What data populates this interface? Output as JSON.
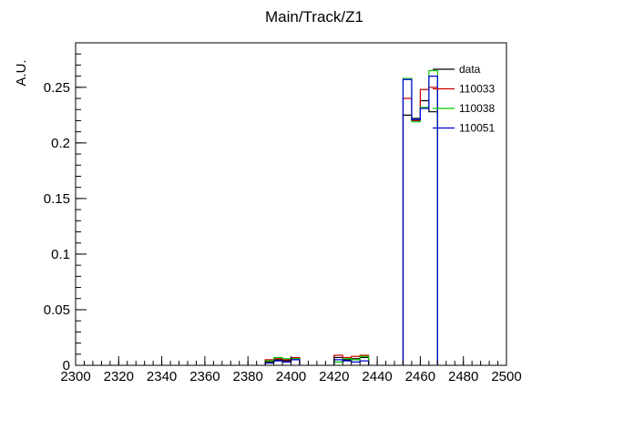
{
  "chart_data": {
    "type": "histogram-step",
    "title": "Main/Track/Z1",
    "xlabel": "",
    "ylabel": "A.U.",
    "xlim": [
      2300,
      2500
    ],
    "ylim": [
      0,
      0.29
    ],
    "x_ticks": [
      2300,
      2320,
      2340,
      2360,
      2380,
      2400,
      2420,
      2440,
      2460,
      2480,
      2500
    ],
    "y_ticks": [
      0,
      0.05,
      0.1,
      0.15,
      0.2,
      0.25
    ],
    "y_tick_labels": [
      "0",
      "0.05",
      "0.1",
      "0.15",
      "0.2",
      "0.25"
    ],
    "grid": false,
    "legend_position": "top-right",
    "bin_width": 4,
    "series": [
      {
        "name": "data",
        "color": "#000000",
        "bins": [
          [
            2388,
            0.003
          ],
          [
            2392,
            0.005
          ],
          [
            2396,
            0.004
          ],
          [
            2400,
            0.006
          ],
          [
            2420,
            0.007
          ],
          [
            2424,
            0.005
          ],
          [
            2428,
            0.006
          ],
          [
            2432,
            0.007
          ],
          [
            2452,
            0.225
          ],
          [
            2456,
            0.222
          ],
          [
            2460,
            0.238
          ],
          [
            2464,
            0.228
          ]
        ]
      },
      {
        "name": "110033",
        "color": "#cc0000",
        "bins": [
          [
            2388,
            0.005
          ],
          [
            2392,
            0.006
          ],
          [
            2396,
            0.005
          ],
          [
            2400,
            0.007
          ],
          [
            2420,
            0.009
          ],
          [
            2424,
            0.007
          ],
          [
            2428,
            0.008
          ],
          [
            2432,
            0.009
          ],
          [
            2452,
            0.24
          ],
          [
            2456,
            0.22
          ],
          [
            2460,
            0.248
          ],
          [
            2464,
            0.25
          ]
        ]
      },
      {
        "name": "110038",
        "color": "#00cc00",
        "bins": [
          [
            2388,
            0.004
          ],
          [
            2392,
            0.007
          ],
          [
            2396,
            0.006
          ],
          [
            2400,
            0.006
          ],
          [
            2420,
            0.003
          ],
          [
            2424,
            0.006
          ],
          [
            2428,
            0.005
          ],
          [
            2432,
            0.008
          ],
          [
            2452,
            0.258
          ],
          [
            2456,
            0.219
          ],
          [
            2460,
            0.232
          ],
          [
            2464,
            0.265
          ]
        ]
      },
      {
        "name": "110051",
        "color": "#0000dd",
        "bins": [
          [
            2388,
            0.002
          ],
          [
            2392,
            0.004
          ],
          [
            2396,
            0.003
          ],
          [
            2400,
            0.005
          ],
          [
            2420,
            0.005
          ],
          [
            2424,
            0.004
          ],
          [
            2428,
            0.003
          ],
          [
            2432,
            0.004
          ],
          [
            2452,
            0.257
          ],
          [
            2456,
            0.221
          ],
          [
            2460,
            0.231
          ],
          [
            2464,
            0.26
          ]
        ]
      }
    ]
  }
}
